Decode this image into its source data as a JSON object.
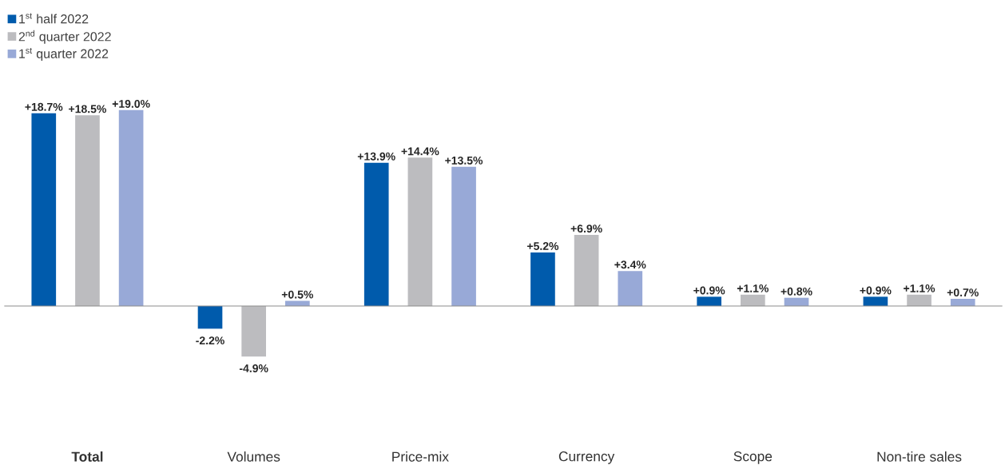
{
  "chart_data": {
    "type": "bar",
    "categories": [
      "**Total**",
      "Volumes",
      "Price-mix",
      "Currency",
      "Scope",
      "Non-tire sales"
    ],
    "series": [
      {
        "name": "1$^{st}$ half 2022",
        "color": "#005bac",
        "values": [
          18.7,
          -2.2,
          13.9,
          5.2,
          0.9,
          0.9
        ],
        "value_labels": [
          "+18.7%",
          "-2.2%",
          "+13.9%",
          "+5.2%",
          "+0.9%",
          "+0.9%"
        ]
      },
      {
        "name": "2$^{nd}$ quarter 2022",
        "color": "#bcbcbf",
        "values": [
          18.5,
          -4.9,
          14.4,
          6.9,
          1.1,
          1.1
        ],
        "value_labels": [
          "+18.5%",
          "-4.9%",
          "+14.4%",
          "+6.9%",
          "+1.1%",
          "+1.1%"
        ]
      },
      {
        "name": "1$^{st}$ quarter 2022",
        "color": "#98a9d7",
        "values": [
          19.0,
          0.5,
          13.5,
          3.4,
          0.8,
          0.7
        ],
        "value_labels": [
          "+19.0%",
          "+0.5%",
          "+13.5%",
          "+3.4%",
          "+0.8%",
          "+0.7%"
        ]
      }
    ],
    "legend": "top left"
  }
}
